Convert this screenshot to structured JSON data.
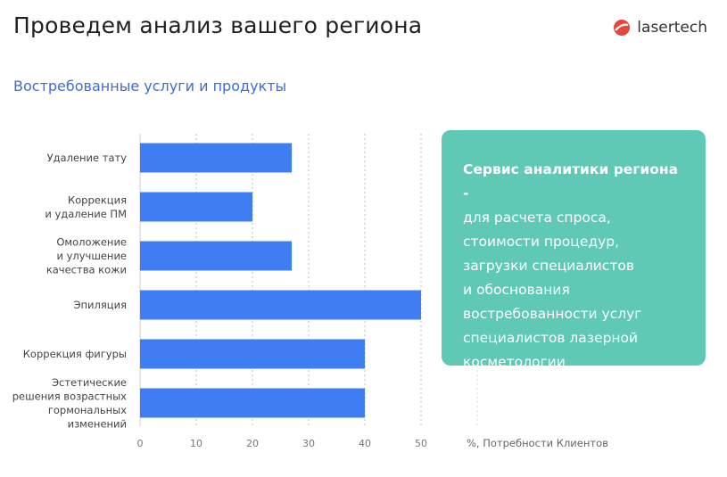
{
  "header": {
    "title": "Проведем анализ вашего региона",
    "logo_text": "lasertech"
  },
  "subtitle": "Востребованные услуги и продукты",
  "callout": {
    "title": "Сервис аналитики региона -",
    "lines": [
      "для расчета спроса,",
      "стоимости процедур,",
      "загрузки специалистов",
      "и обоснования",
      "востребованности услуг",
      "специалистов лазерной",
      "косметологии"
    ]
  },
  "colors": {
    "bar": "#3f7ef2",
    "callout": "#5fc9b6",
    "subtitle": "#3a6fd8",
    "logo": "#e8453c"
  },
  "chart_data": {
    "type": "bar",
    "orientation": "horizontal",
    "categories": [
      [
        "Удаление тату"
      ],
      [
        "Коррекция",
        "и удаление ПМ"
      ],
      [
        "Омоложение",
        "и улучшение",
        "качества кожи"
      ],
      [
        "Эпиляция"
      ],
      [
        "Коррекция фигуры"
      ],
      [
        "Эстетические",
        "решения возрастных",
        "гормональных",
        "изменений"
      ]
    ],
    "values": [
      27,
      20,
      27,
      50,
      40,
      40
    ],
    "xticks": [
      "0",
      "10",
      "20",
      "30",
      "40",
      "50"
    ],
    "xlim": [
      0,
      50
    ],
    "xlabel": "%, Потребности Клиентов",
    "grid": "vertical dashed"
  }
}
